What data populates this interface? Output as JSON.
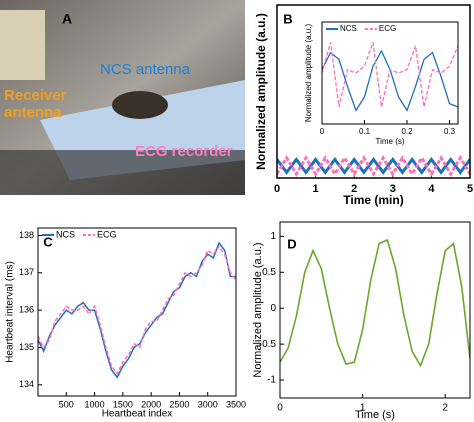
{
  "photo": {
    "panel_label": "A",
    "ncs_antenna": "NCS antenna",
    "receiver_antenna": [
      "Receiver",
      "antenna"
    ],
    "ecg_recorder": "ECG recorder"
  },
  "chart_data": [
    {
      "type": "line",
      "panel_label": "B",
      "x_label": "Time (min)",
      "y_label": "Normalized amplitude (a.u.)",
      "xlim": [
        0,
        5
      ],
      "xticks": [
        0,
        1,
        2,
        3,
        4,
        5
      ],
      "ylim": [
        -1.5,
        20
      ],
      "x": [
        0,
        0.25,
        0.5,
        0.75,
        1,
        1.25,
        1.5,
        1.75,
        2,
        2.25,
        2.5,
        2.75,
        3,
        3.25,
        3.5,
        3.75,
        4,
        4.25,
        4.5,
        4.75,
        5
      ],
      "series": [
        {
          "name": "NCS",
          "color": "#1f6fbf",
          "line_style": "solid",
          "values": [
            0.8,
            -0.8,
            0.8,
            -0.8,
            0.8,
            -0.8,
            0.8,
            -0.8,
            0.8,
            -0.8,
            0.8,
            -0.8,
            0.8,
            -0.8,
            0.8,
            -0.8,
            0.8,
            -0.8,
            0.8,
            -0.8,
            0.8
          ]
        },
        {
          "name": "ECG",
          "color": "#ff6fb5",
          "line_style": "dashed",
          "values": [
            -1,
            1,
            -1,
            1,
            -1,
            1,
            -1,
            1,
            -1,
            1,
            -1,
            1,
            -1,
            1,
            -1,
            1,
            -1,
            1,
            -1,
            1,
            -1
          ]
        }
      ]
    },
    {
      "type": "line",
      "x_label": "Time (s)",
      "y_label": "Normalized amplitude (a.u.)",
      "xlim": [
        0,
        0.32
      ],
      "xticks": [
        0,
        0.1,
        0.2,
        0.3
      ],
      "ylim": [
        -1.3,
        1.7
      ],
      "legend": "top-left",
      "x": [
        0,
        0.02,
        0.04,
        0.06,
        0.08,
        0.1,
        0.12,
        0.14,
        0.16,
        0.18,
        0.2,
        0.22,
        0.24,
        0.26,
        0.28,
        0.3,
        0.32
      ],
      "series": [
        {
          "name": "NCS",
          "color": "#1f6fbf",
          "line_style": "solid",
          "values": [
            0.3,
            0.8,
            0.6,
            -0.2,
            -0.9,
            -0.5,
            0.4,
            0.85,
            0.3,
            -0.5,
            -0.9,
            -0.2,
            0.6,
            0.8,
            0.1,
            -0.7,
            -0.8
          ]
        },
        {
          "name": "ECG",
          "color": "#ff6fb5",
          "line_style": "dashed",
          "values": [
            0.2,
            1.1,
            -0.8,
            0.3,
            0.2,
            0.4,
            1.1,
            -0.8,
            0.3,
            0.2,
            0.3,
            1.0,
            -0.8,
            0.3,
            0.2,
            0.4,
            1.0
          ]
        }
      ]
    },
    {
      "type": "line",
      "panel_label": "C",
      "x_label": "Heartbeat index",
      "y_label": "Heartbeat interval (ms)",
      "xlim": [
        0,
        3500
      ],
      "xticks": [
        500,
        1000,
        1500,
        2000,
        2500,
        3000,
        3500
      ],
      "ylim": [
        133.7,
        138.2
      ],
      "yticks": [
        134,
        135,
        136,
        137,
        138
      ],
      "legend": "top-left",
      "x": [
        0,
        100,
        200,
        300,
        400,
        500,
        600,
        700,
        800,
        900,
        1000,
        1100,
        1200,
        1300,
        1400,
        1500,
        1600,
        1700,
        1800,
        1900,
        2000,
        2100,
        2200,
        2300,
        2400,
        2500,
        2600,
        2700,
        2800,
        2900,
        3000,
        3100,
        3200,
        3300,
        3400,
        3500
      ],
      "series": [
        {
          "name": "NCS",
          "color": "#1f6fbf",
          "line_style": "solid",
          "values": [
            135.2,
            134.9,
            135.3,
            135.6,
            135.8,
            136.0,
            135.9,
            136.1,
            136.2,
            136.0,
            136.0,
            135.5,
            134.9,
            134.4,
            134.2,
            134.5,
            134.7,
            135.0,
            135.1,
            135.4,
            135.6,
            135.8,
            135.9,
            136.2,
            136.5,
            136.6,
            136.9,
            137.0,
            136.9,
            137.3,
            137.5,
            137.4,
            137.8,
            137.6,
            136.9,
            136.9
          ]
        },
        {
          "name": "ECG",
          "color": "#ff6fb5",
          "line_style": "dashed",
          "values": [
            135.3,
            135.0,
            135.2,
            135.7,
            135.9,
            136.1,
            136.0,
            136.0,
            136.1,
            135.9,
            136.1,
            135.6,
            135.0,
            134.5,
            134.3,
            134.6,
            134.8,
            135.1,
            135.0,
            135.5,
            135.7,
            135.7,
            136.0,
            136.3,
            136.4,
            136.7,
            137.0,
            136.9,
            137.0,
            137.2,
            137.6,
            137.5,
            137.7,
            137.5,
            137.0,
            136.8
          ]
        }
      ]
    },
    {
      "type": "line",
      "panel_label": "D",
      "x_label": "Time (s)",
      "y_label": "Normalized amplitude (a.u.)",
      "xlim": [
        0,
        2.3
      ],
      "xticks": [
        0,
        1,
        2
      ],
      "ylim": [
        -1.25,
        1.2
      ],
      "yticks": [
        -1,
        -0.5,
        0,
        0.5,
        1
      ],
      "x": [
        0,
        0.1,
        0.2,
        0.3,
        0.4,
        0.5,
        0.6,
        0.7,
        0.8,
        0.9,
        1.0,
        1.1,
        1.2,
        1.3,
        1.4,
        1.5,
        1.6,
        1.7,
        1.8,
        1.9,
        2.0,
        2.1,
        2.2,
        2.3
      ],
      "series": [
        {
          "color": "#6aa82a",
          "line_style": "solid",
          "values": [
            -0.75,
            -0.55,
            -0.1,
            0.5,
            0.8,
            0.55,
            0.0,
            -0.5,
            -0.78,
            -0.75,
            -0.3,
            0.4,
            0.9,
            0.95,
            0.55,
            -0.1,
            -0.6,
            -0.8,
            -0.5,
            0.2,
            0.8,
            0.9,
            0.3,
            -0.7
          ]
        }
      ]
    }
  ]
}
